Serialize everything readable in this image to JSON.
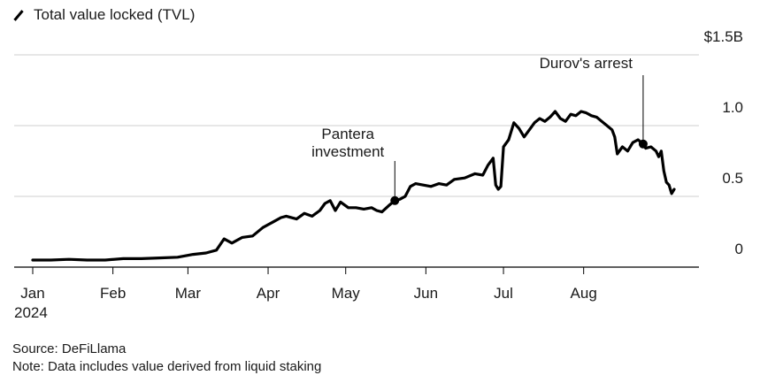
{
  "legend": {
    "label": "Total value locked (TVL)"
  },
  "chart_data": {
    "type": "line",
    "ylim": [
      0,
      1.5
    ],
    "xlim": [
      "2024-01-01",
      "2024-09-05"
    ],
    "y_ticks": [
      {
        "value": 1.5,
        "label": "$1.5B"
      },
      {
        "value": 1.0,
        "label": "1.0"
      },
      {
        "value": 0.5,
        "label": "0.5"
      },
      {
        "value": 0,
        "label": "0"
      }
    ],
    "x_ticks": [
      {
        "date": "2024-01-01",
        "label": "Jan"
      },
      {
        "date": "2024-02-01",
        "label": "Feb"
      },
      {
        "date": "2024-03-01",
        "label": "Mar"
      },
      {
        "date": "2024-04-01",
        "label": "Apr"
      },
      {
        "date": "2024-05-01",
        "label": "May"
      },
      {
        "date": "2024-06-01",
        "label": "Jun"
      },
      {
        "date": "2024-07-01",
        "label": "Jul"
      },
      {
        "date": "2024-08-01",
        "label": "Aug"
      }
    ],
    "year_label": "2024",
    "grid": true,
    "series": [
      {
        "name": "Total value locked (TVL)",
        "color": "#000000",
        "points": [
          [
            "2024-01-01",
            0.05
          ],
          [
            "2024-01-08",
            0.05
          ],
          [
            "2024-01-15",
            0.055
          ],
          [
            "2024-01-22",
            0.05
          ],
          [
            "2024-01-29",
            0.05
          ],
          [
            "2024-02-05",
            0.06
          ],
          [
            "2024-02-12",
            0.06
          ],
          [
            "2024-02-19",
            0.065
          ],
          [
            "2024-02-26",
            0.07
          ],
          [
            "2024-03-03",
            0.09
          ],
          [
            "2024-03-08",
            0.1
          ],
          [
            "2024-03-12",
            0.12
          ],
          [
            "2024-03-15",
            0.2
          ],
          [
            "2024-03-18",
            0.17
          ],
          [
            "2024-03-22",
            0.21
          ],
          [
            "2024-03-26",
            0.22
          ],
          [
            "2024-03-30",
            0.28
          ],
          [
            "2024-04-03",
            0.32
          ],
          [
            "2024-04-06",
            0.35
          ],
          [
            "2024-04-08",
            0.36
          ],
          [
            "2024-04-12",
            0.34
          ],
          [
            "2024-04-15",
            0.38
          ],
          [
            "2024-04-18",
            0.36
          ],
          [
            "2024-04-21",
            0.4
          ],
          [
            "2024-04-23",
            0.45
          ],
          [
            "2024-04-25",
            0.47
          ],
          [
            "2024-04-27",
            0.4
          ],
          [
            "2024-04-29",
            0.46
          ],
          [
            "2024-05-02",
            0.42
          ],
          [
            "2024-05-05",
            0.42
          ],
          [
            "2024-05-08",
            0.41
          ],
          [
            "2024-05-11",
            0.42
          ],
          [
            "2024-05-13",
            0.4
          ],
          [
            "2024-05-15",
            0.39
          ],
          [
            "2024-05-18",
            0.44
          ],
          [
            "2024-05-20",
            0.47
          ],
          [
            "2024-05-22",
            0.48
          ],
          [
            "2024-05-24",
            0.5
          ],
          [
            "2024-05-26",
            0.57
          ],
          [
            "2024-05-28",
            0.59
          ],
          [
            "2024-05-31",
            0.58
          ],
          [
            "2024-06-03",
            0.57
          ],
          [
            "2024-06-06",
            0.59
          ],
          [
            "2024-06-09",
            0.58
          ],
          [
            "2024-06-12",
            0.62
          ],
          [
            "2024-06-16",
            0.63
          ],
          [
            "2024-06-20",
            0.66
          ],
          [
            "2024-06-23",
            0.65
          ],
          [
            "2024-06-25",
            0.72
          ],
          [
            "2024-06-27",
            0.77
          ],
          [
            "2024-06-28",
            0.58
          ],
          [
            "2024-06-29",
            0.55
          ],
          [
            "2024-06-30",
            0.57
          ],
          [
            "2024-07-01",
            0.85
          ],
          [
            "2024-07-03",
            0.9
          ],
          [
            "2024-07-05",
            1.02
          ],
          [
            "2024-07-07",
            0.98
          ],
          [
            "2024-07-09",
            0.92
          ],
          [
            "2024-07-11",
            0.97
          ],
          [
            "2024-07-13",
            1.02
          ],
          [
            "2024-07-15",
            1.05
          ],
          [
            "2024-07-17",
            1.03
          ],
          [
            "2024-07-19",
            1.06
          ],
          [
            "2024-07-21",
            1.1
          ],
          [
            "2024-07-23",
            1.05
          ],
          [
            "2024-07-25",
            1.03
          ],
          [
            "2024-07-27",
            1.08
          ],
          [
            "2024-07-29",
            1.07
          ],
          [
            "2024-07-31",
            1.1
          ],
          [
            "2024-08-02",
            1.09
          ],
          [
            "2024-08-04",
            1.07
          ],
          [
            "2024-08-06",
            1.06
          ],
          [
            "2024-08-08",
            1.03
          ],
          [
            "2024-08-10",
            1.0
          ],
          [
            "2024-08-12",
            0.97
          ],
          [
            "2024-08-13",
            0.92
          ],
          [
            "2024-08-14",
            0.8
          ],
          [
            "2024-08-16",
            0.85
          ],
          [
            "2024-08-18",
            0.82
          ],
          [
            "2024-08-20",
            0.88
          ],
          [
            "2024-08-22",
            0.9
          ],
          [
            "2024-08-24",
            0.87
          ],
          [
            "2024-08-25",
            0.84
          ],
          [
            "2024-08-27",
            0.85
          ],
          [
            "2024-08-29",
            0.82
          ],
          [
            "2024-08-30",
            0.78
          ],
          [
            "2024-08-31",
            0.82
          ],
          [
            "2024-09-01",
            0.68
          ],
          [
            "2024-09-02",
            0.6
          ],
          [
            "2024-09-03",
            0.58
          ],
          [
            "2024-09-04",
            0.52
          ],
          [
            "2024-09-05",
            0.55
          ]
        ]
      }
    ],
    "annotations": [
      {
        "text": "Pantera\ninvestment",
        "date": "2024-05-20",
        "value": 0.47
      },
      {
        "text": "Durov's arrest",
        "date": "2024-08-24",
        "value": 0.87
      }
    ]
  },
  "footer": {
    "source": "Source: DeFiLlama",
    "note": "Note: Data includes value derived from liquid staking"
  }
}
